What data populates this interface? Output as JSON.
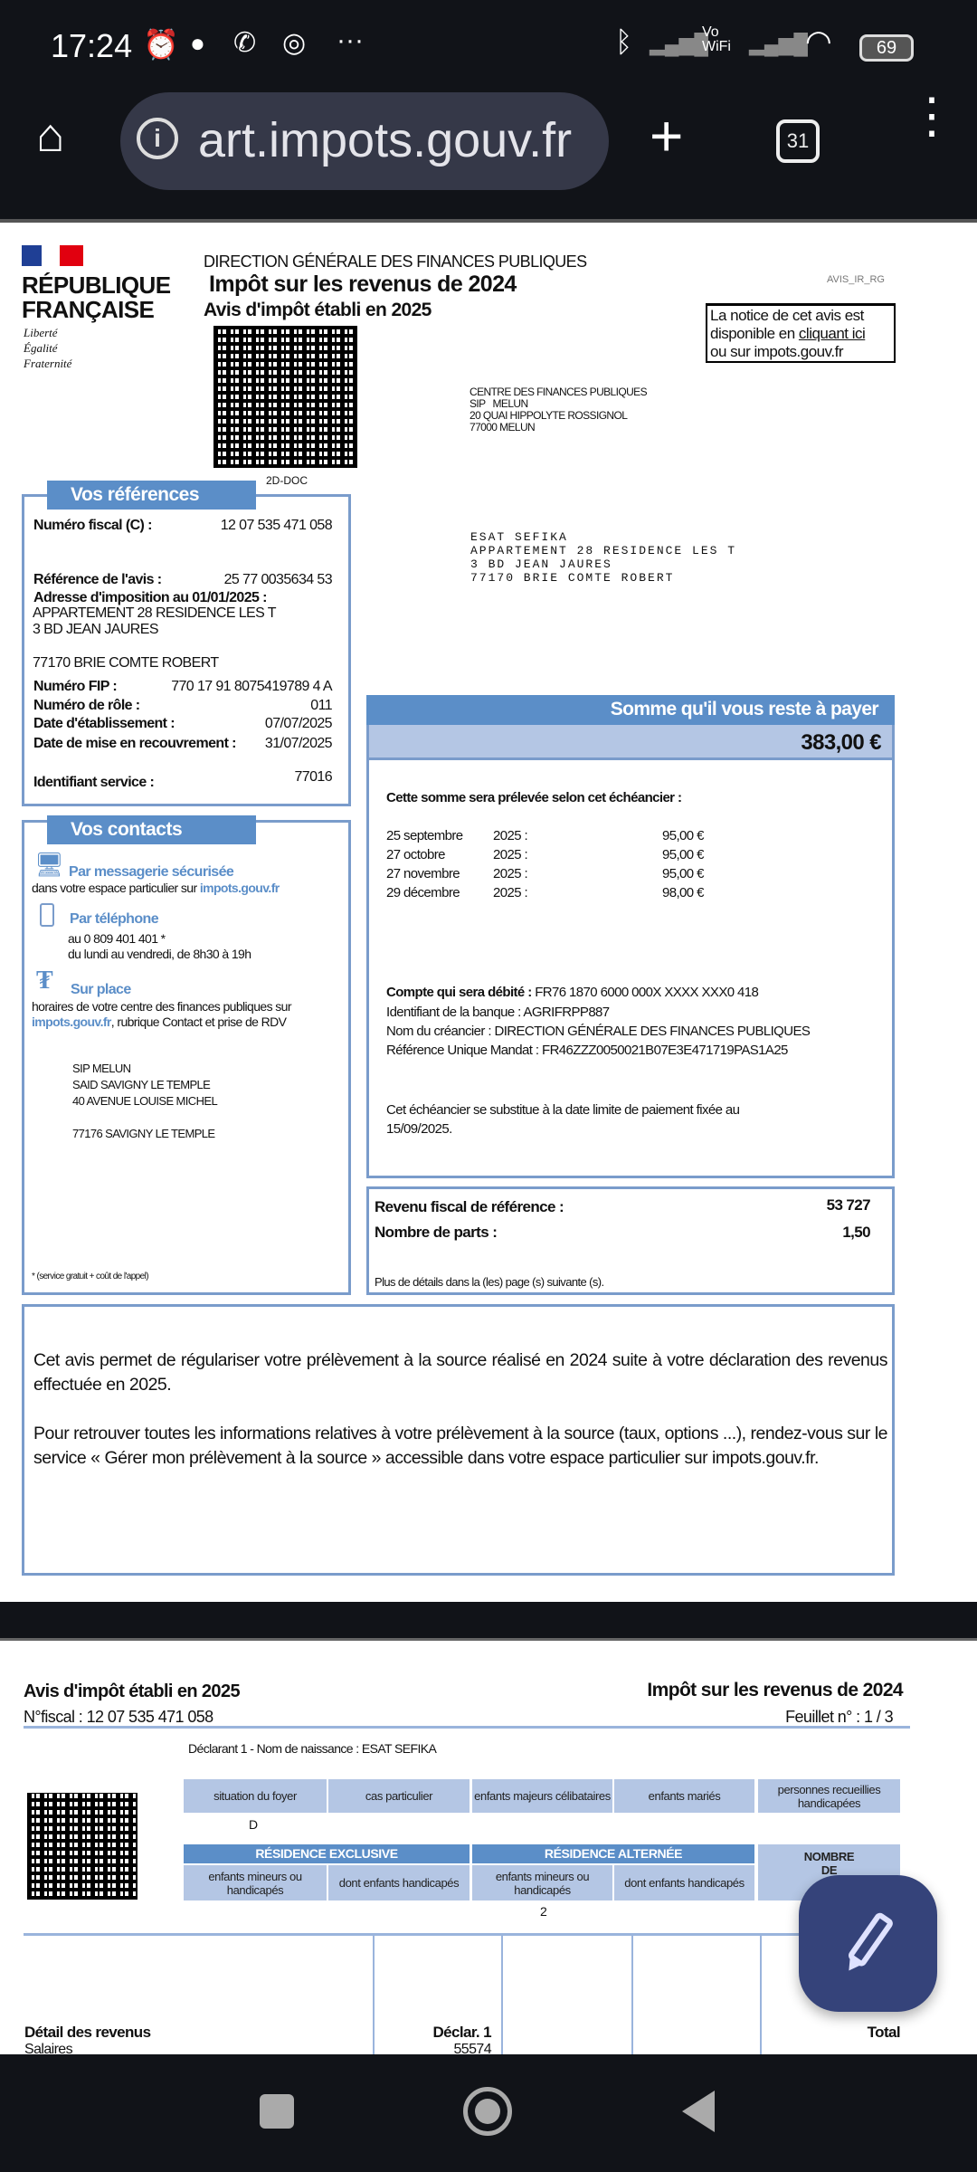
{
  "status_bar": {
    "time": "17:24",
    "battery": "69",
    "vowifi": "Vo WiFi",
    "icons": [
      "alarm-icon",
      "chat-icon",
      "whatsapp-icon",
      "chrome-icon",
      "more-icon",
      "bluetooth-icon",
      "signal-icon",
      "wifi-icon",
      "battery-icon"
    ]
  },
  "browser": {
    "url": "art.impots.gouv.fr",
    "tab_count": "31"
  },
  "page1": {
    "logo": {
      "line1": "RÉPUBLIQUE",
      "line2": "FRANÇAISE",
      "motto": [
        "Liberté",
        "Égalité",
        "Fraternité"
      ]
    },
    "header": {
      "direction": "DIRECTION GÉNÉRALE DES FINANCES PUBLIQUES",
      "title": "Impôt sur les revenus de 2024",
      "subtitle": "Avis d'impôt établi en 2025",
      "code": "AVIS_IR_RG"
    },
    "notice": {
      "line1": "La notice de cet avis est",
      "line2a": "disponible en ",
      "link": "cliquant ici",
      "line3": "ou sur impots.gouv.fr"
    },
    "qr_label": "2D-DOC",
    "centre": [
      "CENTRE DES FINANCES PUBLIQUES",
      "SIP   MELUN",
      "20 QUAI HIPPOLYTE ROSSIGNOL",
      "77000 MELUN"
    ],
    "recipient": [
      "ESAT SEFIKA",
      "APPARTEMENT 28 RESIDENCE LES T",
      "3 BD JEAN JAURES",
      "77170 BRIE COMTE ROBERT"
    ],
    "references": {
      "title": "Vos références",
      "numero_fiscal_label": "Numéro fiscal (C) :",
      "numero_fiscal": "12 07 535 471 058",
      "reference_label": "Référence de l'avis :",
      "reference": "25 77 0035634 53",
      "adresse_label": "Adresse d'imposition au 01/01/2025 :",
      "adresse": [
        "APPARTEMENT 28 RESIDENCE LES T",
        "3 BD JEAN JAURES",
        "77170 BRIE COMTE ROBERT"
      ],
      "fip_label": "Numéro FIP :",
      "fip": "770 17 91 8075419789 4 A",
      "role_label": "Numéro de rôle :",
      "role": "011",
      "etab_label": "Date d'établissement :",
      "etab": "07/07/2025",
      "recouv_label": "Date de mise en recouvrement :",
      "recouv": "31/07/2025",
      "service_label": "Identifiant service :",
      "service": "77016"
    },
    "contacts": {
      "title": "Vos contacts",
      "msg_title": "Par messagerie sécurisée",
      "msg_text": "dans votre espace particulier sur ",
      "msg_link": "impots.gouv.fr",
      "tel_title": "Par téléphone",
      "tel_number": "au 0 809 401 401 *",
      "tel_hours": "du lundi au vendredi, de 8h30 à 19h",
      "place_title": "Sur place",
      "place_text": "horaires de votre centre des finances publiques  sur",
      "place_link": "impots.gouv.fr",
      "place_text2": ", rubrique Contact et prise  de RDV",
      "address": [
        "SIP MELUN",
        "SAID SAVIGNY LE TEMPLE",
        "40 AVENUE LOUISE MICHEL",
        "77176 SAVIGNY LE TEMPLE"
      ],
      "footnote": "* (service gratuit + coût de l'appel)"
    },
    "payment": {
      "title": "Somme qu'il vous reste à payer",
      "amount": "383,00 €",
      "schedule_intro": "Cette somme sera prélevée selon cet échéancier :",
      "schedule": [
        {
          "date": "25 septembre",
          "year": "2025 :",
          "amount": "95,00 €"
        },
        {
          "date": "27 octobre",
          "year": "2025 :",
          "amount": "95,00 €"
        },
        {
          "date": "27 novembre",
          "year": "2025 :",
          "amount": "95,00 €"
        },
        {
          "date": "29 décembre",
          "year": "2025 :",
          "amount": "98,00 €"
        }
      ],
      "account_label": "Compte qui sera débité :",
      "account": " FR76 1870 6000 000X XXXX XXX0 418",
      "bank": "Identifiant de la banque : AGRIFRPP887",
      "creditor": "Nom du créancier : DIRECTION GÉNÉRALE DES FINANCES PUBLIQUES",
      "mandate": "Référence Unique Mandat : FR46ZZZ0050021B07E3E471719PAS1A25",
      "note1": "Cet échéancier se substitue à la date limite de paiement fixée au",
      "note2": "15/09/2025."
    },
    "revenu": {
      "rfr_label": "Revenu fiscal de référence :",
      "rfr": "53 727",
      "parts_label": "Nombre de parts :",
      "parts": "1,50",
      "more": "Plus de détails dans la (les) page (s) suivante (s)."
    },
    "info": {
      "p1": "Cet avis permet de régulariser votre prélèvement à la source réalisé en 2024 suite à votre déclaration des revenus effectuée en 2025.",
      "p2": "Pour retrouver  toutes  les informations relatives à votre prélèvement à la source (taux, options ...), rendez-vous sur le service « Gérer mon prélèvement à la source » accessible dans  votre  espace particulier sur impots.gouv.fr."
    }
  },
  "page2": {
    "subtitle": "Avis d'impôt établi en 2025",
    "fiscal": "N°fiscal : 12 07 535 471 058",
    "title": "Impôt sur les revenus de 2024",
    "sheet": "Feuillet n° : 1 / 3",
    "declarant": "Déclarant 1 - Nom de naissance : ESAT  SEFIKA",
    "headers": [
      "situation du foyer",
      "cas particulier",
      "enfants majeurs célibataires",
      "enfants mariés",
      "personnes recueillies handicapées"
    ],
    "situation": "D",
    "res_exclusive": "RÉSIDENCE EXCLUSIVE",
    "res_alternee": "RÉSIDENCE ALTERNÉE",
    "nombre": "NOMBRE DE",
    "sub_headers": [
      "enfants mineurs ou handicapés",
      "dont enfants handicapés",
      "enfants mineurs ou handicapés",
      "dont enfants handicapés"
    ],
    "alt_children": "2",
    "detail_label": "Détail des revenus",
    "declar": "Déclar. 1",
    "total": "Total",
    "salaires": "Salaires",
    "salaires_value": "55574"
  },
  "fab": {
    "icon": "pencil-icon"
  },
  "nav": {
    "icons": [
      "recents-icon",
      "home-icon",
      "back-icon"
    ]
  }
}
